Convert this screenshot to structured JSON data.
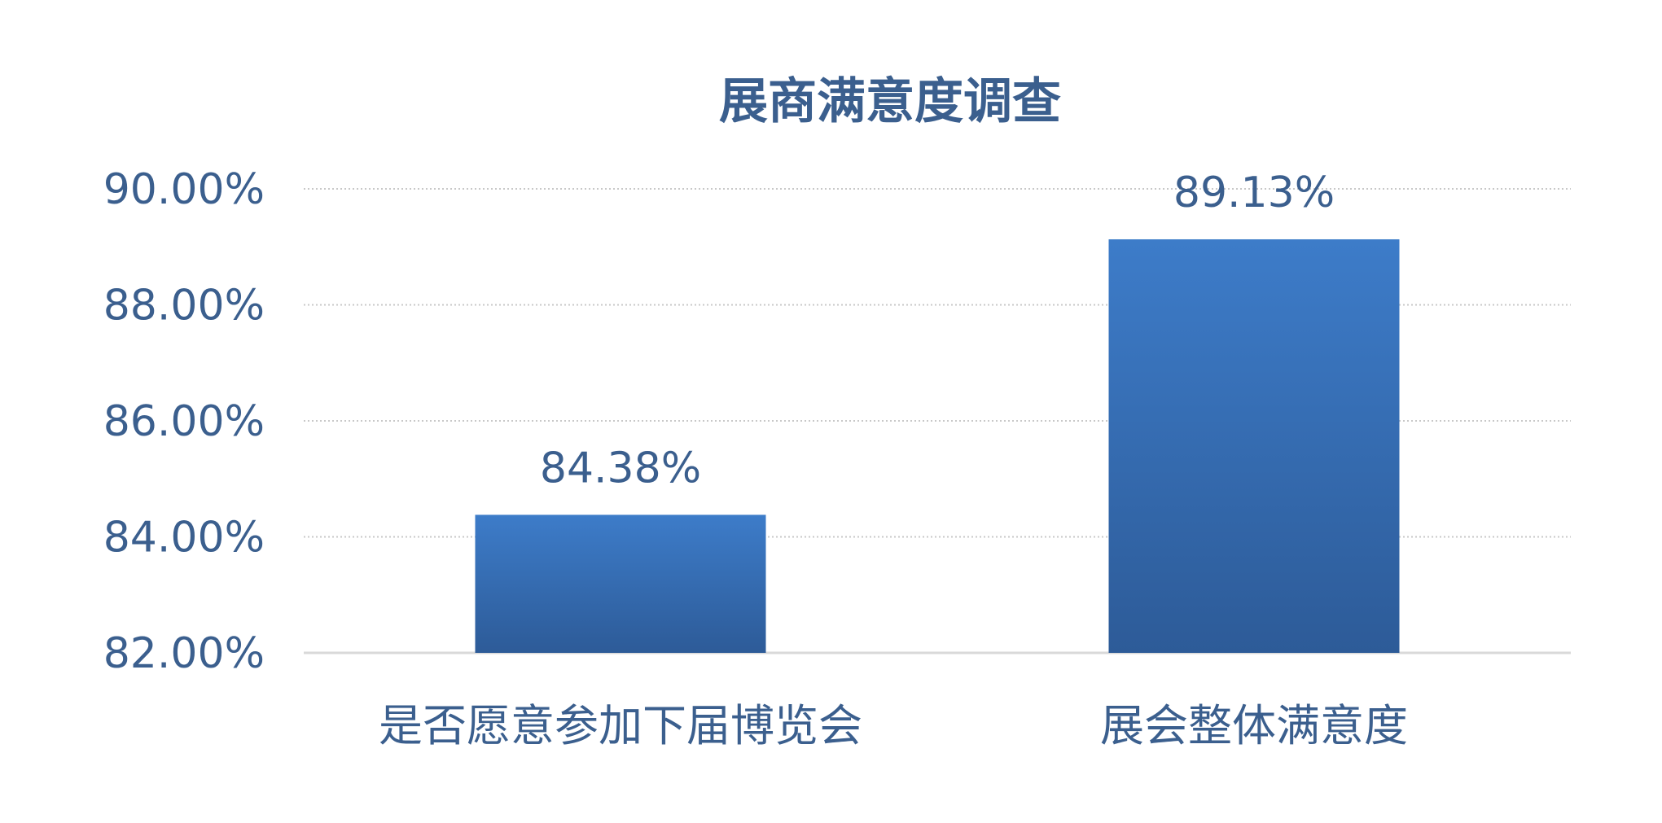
{
  "chart_data": {
    "type": "bar",
    "title": "展商满意度调查",
    "categories": [
      "是否愿意参加下届博览会",
      "展会整体满意度"
    ],
    "values": [
      84.38,
      89.13
    ],
    "data_labels": [
      "84.38%",
      "89.13%"
    ],
    "xlabel": "",
    "ylabel": "",
    "ylim": [
      82,
      90
    ],
    "yticks": [
      82,
      84,
      86,
      88,
      90
    ],
    "ytick_labels": [
      "82.00%",
      "84.00%",
      "86.00%",
      "88.00%",
      "90.00%"
    ],
    "grid": true,
    "legend": "none",
    "colors": {
      "bar_top": "#3D7CC9",
      "bar_bottom": "#2D5B98",
      "text": "#3B5F8E",
      "grid": "#C8C8C8",
      "axis": "#D9D9D9"
    }
  }
}
